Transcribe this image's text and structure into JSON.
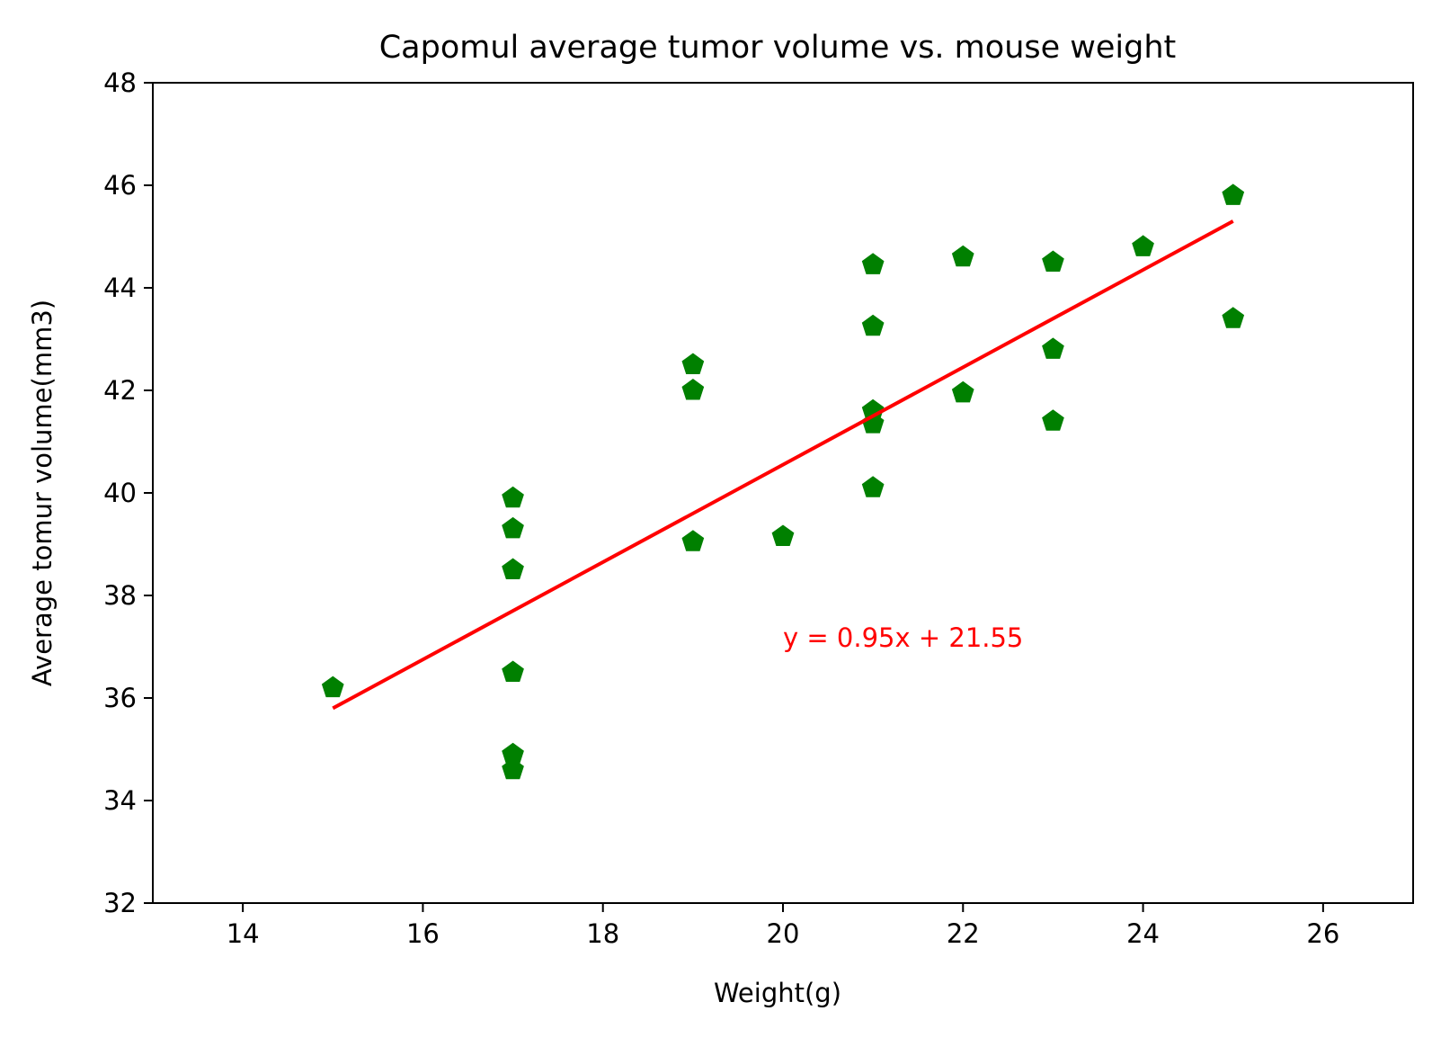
{
  "chart_data": {
    "type": "scatter",
    "title": "Capomul average tumor volume vs. mouse weight",
    "xlabel": "Weight(g)",
    "ylabel": "Average tomur volume(mm3)",
    "xlim": [
      13,
      27
    ],
    "ylim": [
      32,
      48
    ],
    "xticks": [
      14,
      16,
      18,
      20,
      22,
      24,
      26
    ],
    "yticks": [
      32,
      34,
      36,
      38,
      40,
      42,
      44,
      46,
      48
    ],
    "grid": false,
    "marker_color": "#008000",
    "line_color": "#ff0000",
    "series": [
      {
        "points": [
          [
            15,
            36.2
          ],
          [
            17,
            39.9
          ],
          [
            17,
            39.3
          ],
          [
            17,
            38.5
          ],
          [
            17,
            36.5
          ],
          [
            17,
            34.9
          ],
          [
            17,
            34.6
          ],
          [
            19,
            42.5
          ],
          [
            19,
            42.0
          ],
          [
            19,
            39.05
          ],
          [
            20,
            39.15
          ],
          [
            21,
            44.45
          ],
          [
            21,
            43.25
          ],
          [
            21,
            41.6
          ],
          [
            21,
            41.35
          ],
          [
            21,
            40.1
          ],
          [
            22,
            44.6
          ],
          [
            22,
            41.95
          ],
          [
            23,
            44.5
          ],
          [
            23,
            42.8
          ],
          [
            23,
            41.4
          ],
          [
            24,
            44.8
          ],
          [
            25,
            45.8
          ],
          [
            25,
            43.4
          ]
        ]
      }
    ],
    "regression": {
      "slope": 0.95,
      "intercept": 21.55,
      "x_range": [
        15,
        25
      ]
    },
    "annotation": {
      "text": "y = 0.95x + 21.55",
      "x": 20,
      "y": 37
    }
  }
}
